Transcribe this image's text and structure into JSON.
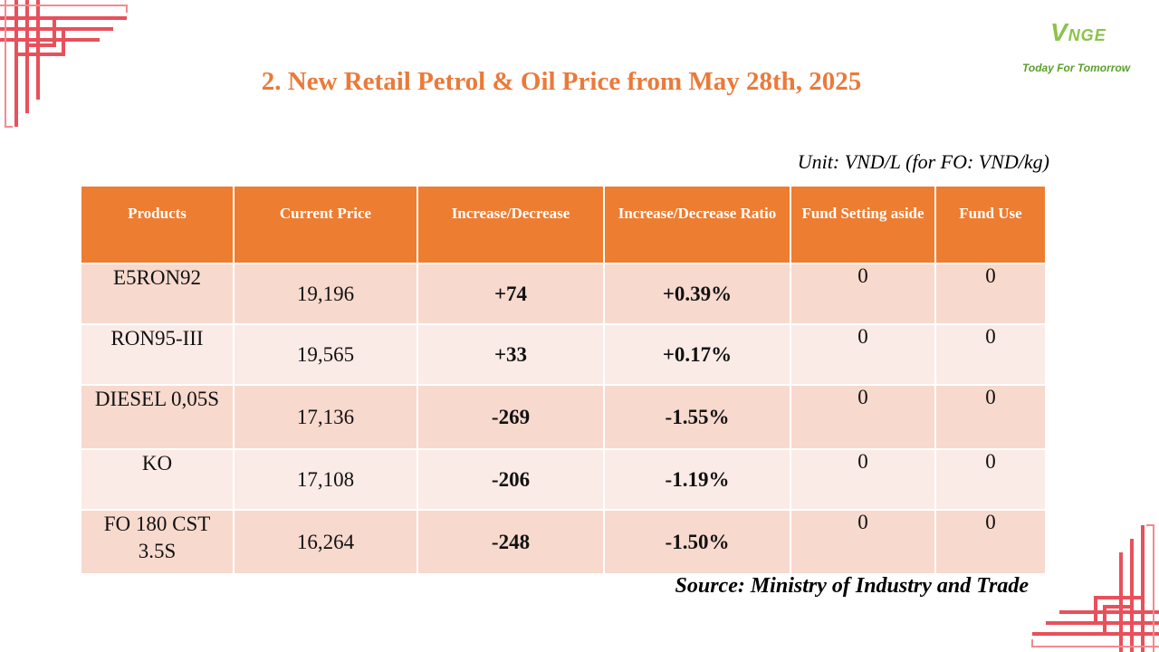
{
  "title": "2. New Retail Petrol & Oil Price from May 28th, 2025",
  "logo": {
    "mark": "V",
    "mark_rest": "NGE",
    "tagline": "Today For Tomorrow"
  },
  "unit": "Unit: VND/L (for FO: VND/kg)",
  "table": {
    "headers": [
      "Products",
      "Current Price",
      "Increase/Decrease",
      "Increase/Decrease Ratio",
      "Fund Setting aside",
      "Fund Use"
    ],
    "rows": [
      {
        "product": "E5RON92",
        "price": "19,196",
        "change": "+74",
        "ratio": "+0.39%",
        "fund_setting": "0",
        "fund_use": "0"
      },
      {
        "product": "RON95-III",
        "price": "19,565",
        "change": "+33",
        "ratio": "+0.17%",
        "fund_setting": "0",
        "fund_use": "0"
      },
      {
        "product": "DIESEL 0,05S",
        "price": "17,136",
        "change": "-269",
        "ratio": "-1.55%",
        "fund_setting": "0",
        "fund_use": "0"
      },
      {
        "product": "KO",
        "price": "17,108",
        "change": "-206",
        "ratio": "-1.19%",
        "fund_setting": "0",
        "fund_use": "0"
      },
      {
        "product": "FO 180 CST 3.5S",
        "price": "16,264",
        "change": "-248",
        "ratio": "-1.50%",
        "fund_setting": "0",
        "fund_use": "0"
      }
    ]
  },
  "source": "Source: Ministry of Industry and Trade",
  "colors": {
    "accent": "#ED7D31",
    "title": "#EA7A3A",
    "increase": "#1AA64B",
    "decrease": "#E02020",
    "row_odd": "#F7D9CE",
    "row_even": "#FBEBE6"
  }
}
